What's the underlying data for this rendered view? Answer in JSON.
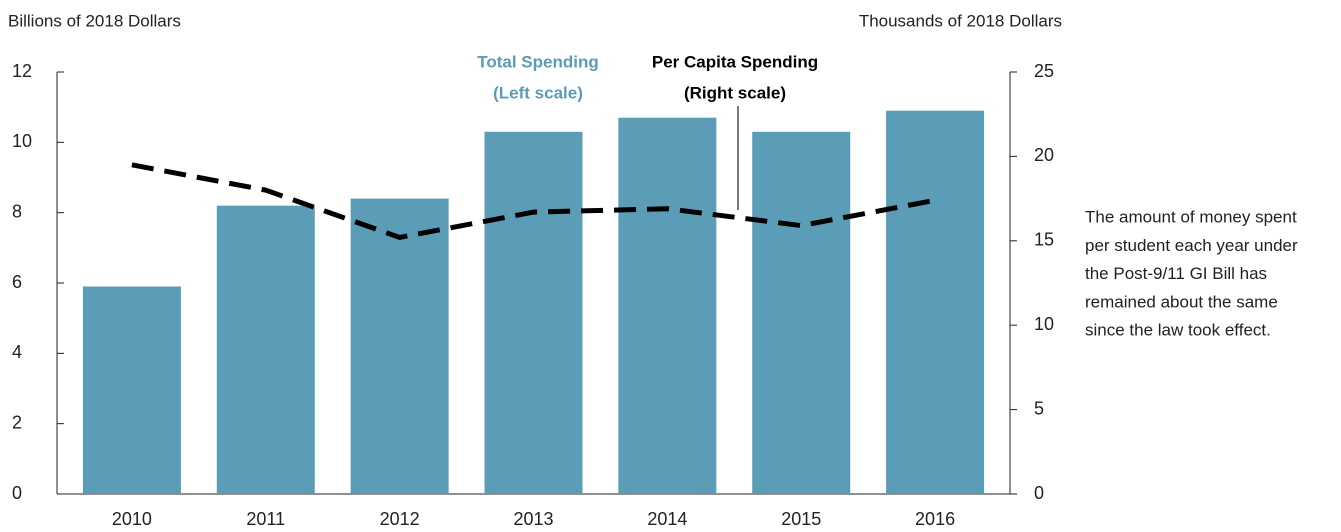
{
  "chart_data": {
    "type": "combo",
    "ylabel": "Billions of 2018 Dollars",
    "y2label": "Thousands of 2018 Dollars",
    "categories": [
      "2010",
      "2011",
      "2012",
      "2013",
      "2014",
      "2015",
      "2016"
    ],
    "series": [
      {
        "name": "Total Spending",
        "scale": "(Left scale)",
        "type": "bar",
        "color": "#5b9db7",
        "values": [
          5.9,
          8.2,
          8.4,
          10.3,
          10.7,
          10.3,
          10.9
        ]
      },
      {
        "name": "Per Capita Spending",
        "scale": "(Right scale)",
        "type": "line",
        "color": "#000000",
        "axis": "y2",
        "values": [
          19.5,
          18.0,
          15.2,
          16.7,
          16.9,
          15.9,
          17.4
        ]
      }
    ],
    "ylim": [
      0,
      12
    ],
    "yticks": [
      0,
      2,
      4,
      6,
      8,
      10,
      12
    ],
    "y2lim": [
      0,
      25
    ],
    "y2ticks": [
      0,
      5,
      10,
      15,
      20,
      25
    ],
    "note": [
      "The amount of money spent",
      "per student each year under",
      "the Post-9/11 GI Bill has",
      "remained about the same",
      "since the law took effect."
    ]
  }
}
